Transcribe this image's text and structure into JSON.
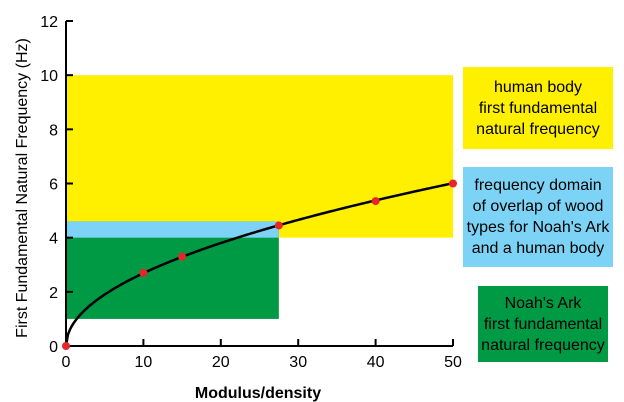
{
  "chart_data": {
    "type": "line",
    "title": "",
    "xlabel": "Modulus/density",
    "ylabel": "First Fundamental Natural Frequency (Hz)",
    "xlim": [
      0,
      50
    ],
    "ylim": [
      0,
      12
    ],
    "x_ticks": [
      0,
      10,
      20,
      30,
      40,
      50
    ],
    "y_ticks": [
      0,
      2,
      4,
      6,
      8,
      10,
      12
    ],
    "grid": false,
    "regions": [
      {
        "x": [
          0,
          50
        ],
        "y": [
          4,
          10
        ],
        "color": "#FFF000"
      },
      {
        "x": [
          0,
          27.5
        ],
        "y": [
          1,
          4.6
        ],
        "color": "#009944"
      },
      {
        "x": [
          0,
          27.5
        ],
        "y": [
          4,
          4.6
        ],
        "color": "#7DD3F5"
      }
    ],
    "curve": {
      "formula": "sqrt",
      "coefficient": 0.85,
      "x_max": 50,
      "color": "#000000"
    },
    "points": [
      {
        "x": 0,
        "y": 0
      },
      {
        "x": 10,
        "y": 2.7
      },
      {
        "x": 15,
        "y": 3.3
      },
      {
        "x": 27.5,
        "y": 4.45
      },
      {
        "x": 40,
        "y": 5.35
      },
      {
        "x": 50,
        "y": 6.0
      }
    ],
    "point_color": "#E8262A"
  },
  "legend": [
    {
      "lines": [
        "human body",
        "first fundamental",
        "natural frequency"
      ],
      "color": "#FFF000"
    },
    {
      "lines": [
        "frequency domain",
        "of overlap of wood",
        "types for Noah's Ark",
        "and a human body"
      ],
      "color": "#7DD3F5"
    },
    {
      "lines": [
        "Noah's Ark",
        "first fundamental",
        "natural frequency"
      ],
      "color": "#009944"
    }
  ]
}
